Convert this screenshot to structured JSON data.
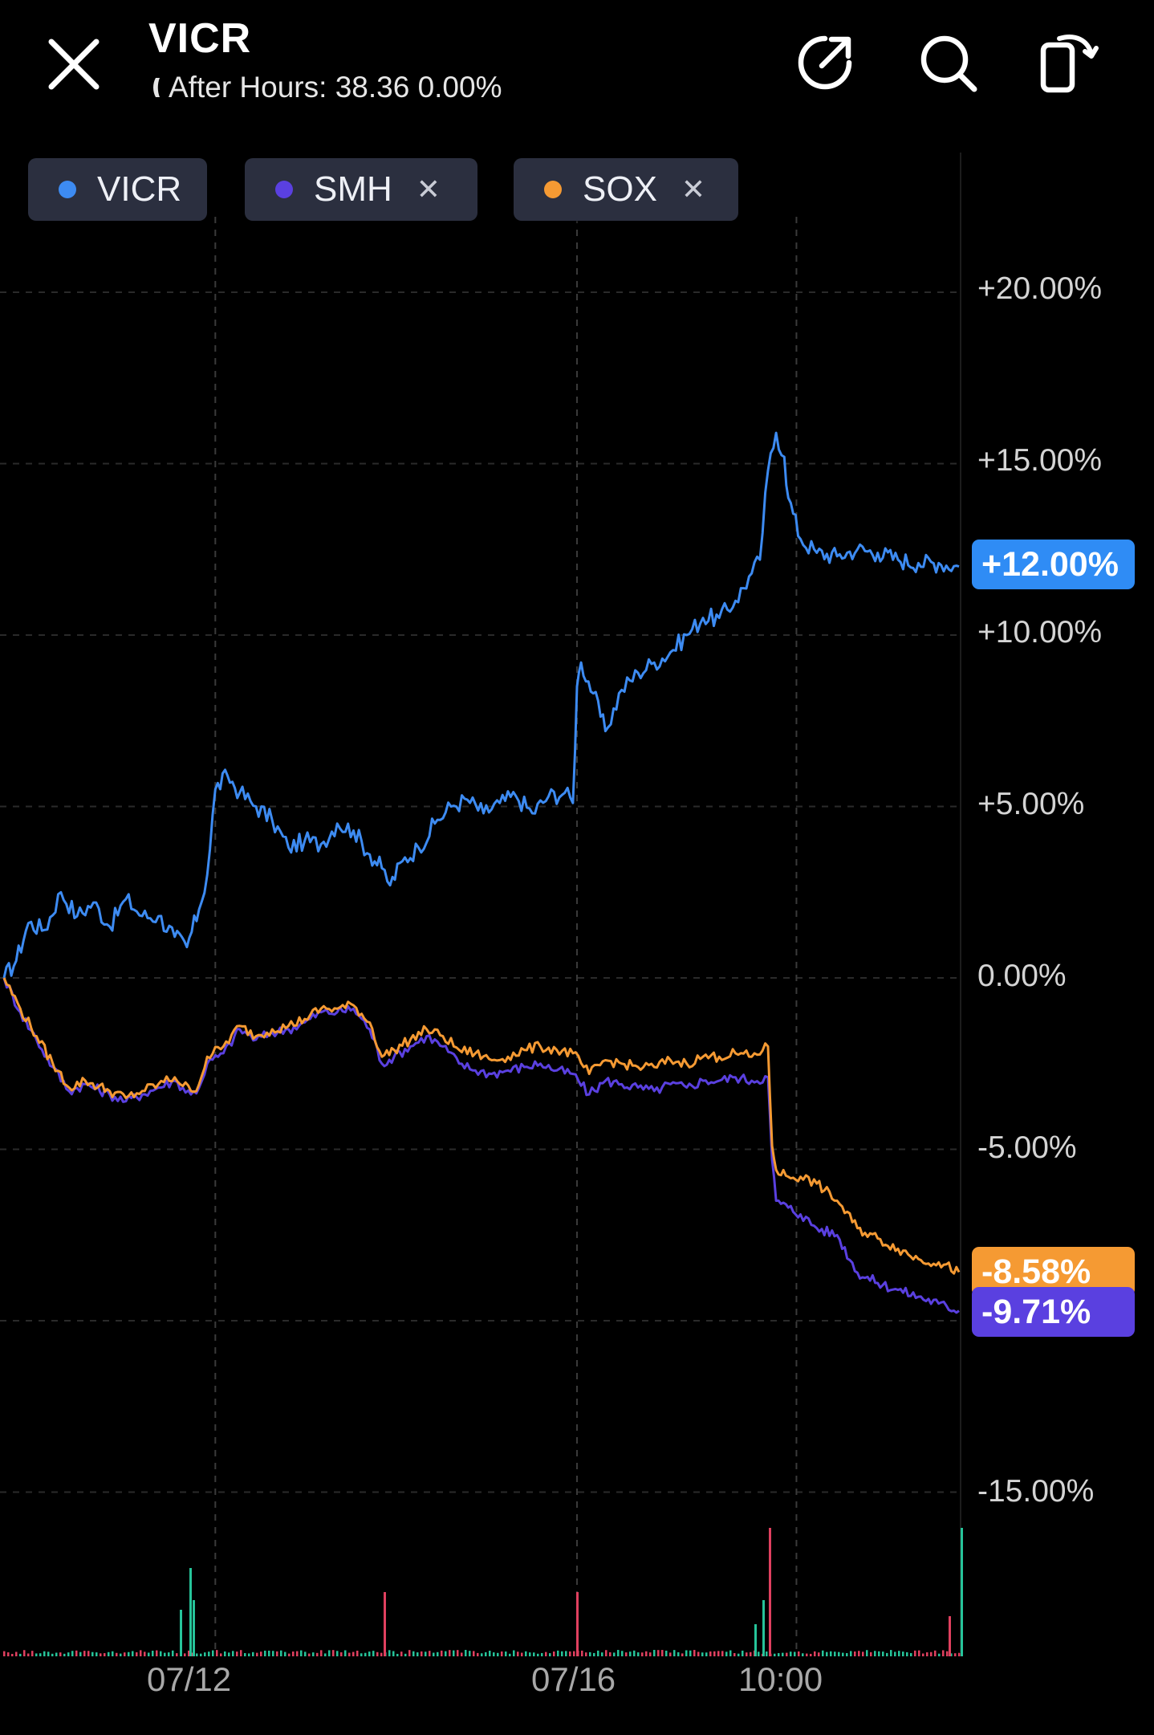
{
  "header": {
    "ticker": "VICR",
    "after_hours_label": "After Hours:",
    "after_hours_price": "38.36",
    "after_hours_change": "0.00%"
  },
  "icons": {
    "close": "close-icon",
    "share": "share-icon",
    "search": "search-icon",
    "rotate": "rotate-screen-icon",
    "moon": "moon-icon"
  },
  "chips": [
    {
      "label": "VICR",
      "color": "#3d8bf2",
      "removable": false
    },
    {
      "label": "SMH",
      "color": "#5a40e0",
      "removable": true
    },
    {
      "label": "SOX",
      "color": "#f59a33",
      "removable": true
    }
  ],
  "badges": {
    "vicr": {
      "text": "+12.00%",
      "color": "#2f8cf5"
    },
    "sox": {
      "text": "-8.58%",
      "color": "#f59a33"
    },
    "smh": {
      "text": "-9.71%",
      "color": "#5a40e0"
    }
  },
  "chart_data": {
    "type": "line",
    "ylim": [
      -18,
      23
    ],
    "y_tick_labels": [
      "+20.00%",
      "+15.00%",
      "+10.00%",
      "+5.00%",
      "0.00%",
      "-5.00%",
      "-15.00%"
    ],
    "x_tick_labels": [
      "07/12",
      "07/16",
      "10:00"
    ],
    "grid": true,
    "legend": "top-left",
    "series": [
      {
        "name": "VICR",
        "color": "#3d8bf2",
        "points": [
          [
            0,
            0
          ],
          [
            3,
            0.5
          ],
          [
            6,
            1.6
          ],
          [
            10,
            1.4
          ],
          [
            14,
            2.5
          ],
          [
            18,
            1.8
          ],
          [
            22,
            2.2
          ],
          [
            26,
            1.5
          ],
          [
            30,
            2.3
          ],
          [
            34,
            1.8
          ],
          [
            38,
            1.8
          ],
          [
            42,
            1.2
          ],
          [
            45,
            0.9
          ],
          [
            48,
            2.0
          ],
          [
            50,
            3.0
          ],
          [
            52,
            5.5
          ],
          [
            55,
            5.9
          ],
          [
            58,
            5.4
          ],
          [
            62,
            5.0
          ],
          [
            66,
            4.6
          ],
          [
            70,
            3.8
          ],
          [
            74,
            4.0
          ],
          [
            78,
            3.9
          ],
          [
            82,
            4.5
          ],
          [
            86,
            4.3
          ],
          [
            90,
            3.6
          ],
          [
            93,
            3.2
          ],
          [
            95,
            2.7
          ],
          [
            98,
            3.4
          ],
          [
            102,
            3.8
          ],
          [
            106,
            4.5
          ],
          [
            110,
            5.0
          ],
          [
            114,
            5.2
          ],
          [
            118,
            4.8
          ],
          [
            122,
            5.1
          ],
          [
            126,
            5.3
          ],
          [
            130,
            4.8
          ],
          [
            134,
            5.3
          ],
          [
            138,
            5.4
          ],
          [
            140,
            5.1
          ],
          [
            141,
            8.5
          ],
          [
            142,
            9.2
          ],
          [
            145,
            8.3
          ],
          [
            148,
            7.2
          ],
          [
            152,
            8.4
          ],
          [
            156,
            8.9
          ],
          [
            160,
            9.2
          ],
          [
            164,
            9.5
          ],
          [
            168,
            10.0
          ],
          [
            172,
            10.5
          ],
          [
            176,
            10.5
          ],
          [
            180,
            11.0
          ],
          [
            184,
            11.8
          ],
          [
            186,
            12.2
          ],
          [
            188,
            14.8
          ],
          [
            190,
            15.9
          ],
          [
            192,
            15.2
          ],
          [
            193,
            14.0
          ],
          [
            196,
            12.8
          ],
          [
            200,
            12.4
          ],
          [
            205,
            12.3
          ],
          [
            210,
            12.5
          ],
          [
            215,
            12.4
          ],
          [
            220,
            12.2
          ],
          [
            225,
            12.1
          ],
          [
            230,
            12.1
          ],
          [
            235,
            12.0
          ]
        ]
      },
      {
        "name": "SMH",
        "color": "#5a40e0",
        "points": [
          [
            0,
            0
          ],
          [
            4,
            -1.0
          ],
          [
            8,
            -1.8
          ],
          [
            12,
            -2.6
          ],
          [
            16,
            -3.3
          ],
          [
            20,
            -3.1
          ],
          [
            26,
            -3.4
          ],
          [
            30,
            -3.6
          ],
          [
            34,
            -3.4
          ],
          [
            38,
            -3.2
          ],
          [
            42,
            -3.0
          ],
          [
            46,
            -3.4
          ],
          [
            48,
            -3.2
          ],
          [
            50,
            -2.5
          ],
          [
            54,
            -2.2
          ],
          [
            58,
            -1.5
          ],
          [
            62,
            -1.8
          ],
          [
            66,
            -1.6
          ],
          [
            70,
            -1.5
          ],
          [
            74,
            -1.3
          ],
          [
            78,
            -1.0
          ],
          [
            82,
            -1.0
          ],
          [
            86,
            -0.9
          ],
          [
            90,
            -1.5
          ],
          [
            93,
            -2.5
          ],
          [
            96,
            -2.3
          ],
          [
            100,
            -2.0
          ],
          [
            104,
            -1.7
          ],
          [
            108,
            -2.0
          ],
          [
            112,
            -2.5
          ],
          [
            116,
            -2.7
          ],
          [
            120,
            -2.8
          ],
          [
            124,
            -2.7
          ],
          [
            128,
            -2.6
          ],
          [
            132,
            -2.5
          ],
          [
            136,
            -2.7
          ],
          [
            140,
            -2.8
          ],
          [
            144,
            -3.4
          ],
          [
            148,
            -3.0
          ],
          [
            152,
            -3.1
          ],
          [
            156,
            -3.2
          ],
          [
            160,
            -3.3
          ],
          [
            164,
            -3.1
          ],
          [
            168,
            -3.2
          ],
          [
            172,
            -3.0
          ],
          [
            176,
            -3.0
          ],
          [
            180,
            -2.9
          ],
          [
            184,
            -3.0
          ],
          [
            188,
            -2.9
          ],
          [
            189,
            -5.3
          ],
          [
            190,
            -6.5
          ],
          [
            193,
            -6.7
          ],
          [
            196,
            -6.9
          ],
          [
            200,
            -7.3
          ],
          [
            205,
            -7.5
          ],
          [
            210,
            -8.6
          ],
          [
            215,
            -8.9
          ],
          [
            220,
            -9.1
          ],
          [
            225,
            -9.3
          ],
          [
            230,
            -9.5
          ],
          [
            235,
            -9.71
          ]
        ]
      },
      {
        "name": "SOX",
        "color": "#f59a33",
        "points": [
          [
            0,
            0
          ],
          [
            4,
            -0.9
          ],
          [
            8,
            -1.7
          ],
          [
            12,
            -2.5
          ],
          [
            16,
            -3.2
          ],
          [
            20,
            -3.0
          ],
          [
            26,
            -3.3
          ],
          [
            30,
            -3.5
          ],
          [
            34,
            -3.3
          ],
          [
            38,
            -3.1
          ],
          [
            42,
            -2.9
          ],
          [
            46,
            -3.3
          ],
          [
            48,
            -3.1
          ],
          [
            50,
            -2.3
          ],
          [
            54,
            -2.0
          ],
          [
            58,
            -1.4
          ],
          [
            62,
            -1.7
          ],
          [
            66,
            -1.5
          ],
          [
            70,
            -1.4
          ],
          [
            74,
            -1.2
          ],
          [
            78,
            -0.9
          ],
          [
            82,
            -0.9
          ],
          [
            86,
            -0.8
          ],
          [
            90,
            -1.3
          ],
          [
            93,
            -2.3
          ],
          [
            96,
            -2.1
          ],
          [
            100,
            -1.8
          ],
          [
            104,
            -1.5
          ],
          [
            108,
            -1.7
          ],
          [
            112,
            -2.1
          ],
          [
            116,
            -2.2
          ],
          [
            120,
            -2.4
          ],
          [
            124,
            -2.3
          ],
          [
            128,
            -2.1
          ],
          [
            132,
            -2.0
          ],
          [
            136,
            -2.1
          ],
          [
            140,
            -2.2
          ],
          [
            144,
            -2.8
          ],
          [
            148,
            -2.4
          ],
          [
            152,
            -2.5
          ],
          [
            156,
            -2.6
          ],
          [
            160,
            -2.6
          ],
          [
            164,
            -2.4
          ],
          [
            168,
            -2.5
          ],
          [
            172,
            -2.3
          ],
          [
            176,
            -2.3
          ],
          [
            180,
            -2.2
          ],
          [
            184,
            -2.3
          ],
          [
            188,
            -2.0
          ],
          [
            189,
            -4.9
          ],
          [
            190,
            -5.6
          ],
          [
            193,
            -5.8
          ],
          [
            196,
            -5.8
          ],
          [
            200,
            -6.0
          ],
          [
            205,
            -6.5
          ],
          [
            210,
            -7.3
          ],
          [
            215,
            -7.6
          ],
          [
            220,
            -7.9
          ],
          [
            225,
            -8.2
          ],
          [
            230,
            -8.3
          ],
          [
            235,
            -8.58
          ]
        ]
      }
    ]
  }
}
